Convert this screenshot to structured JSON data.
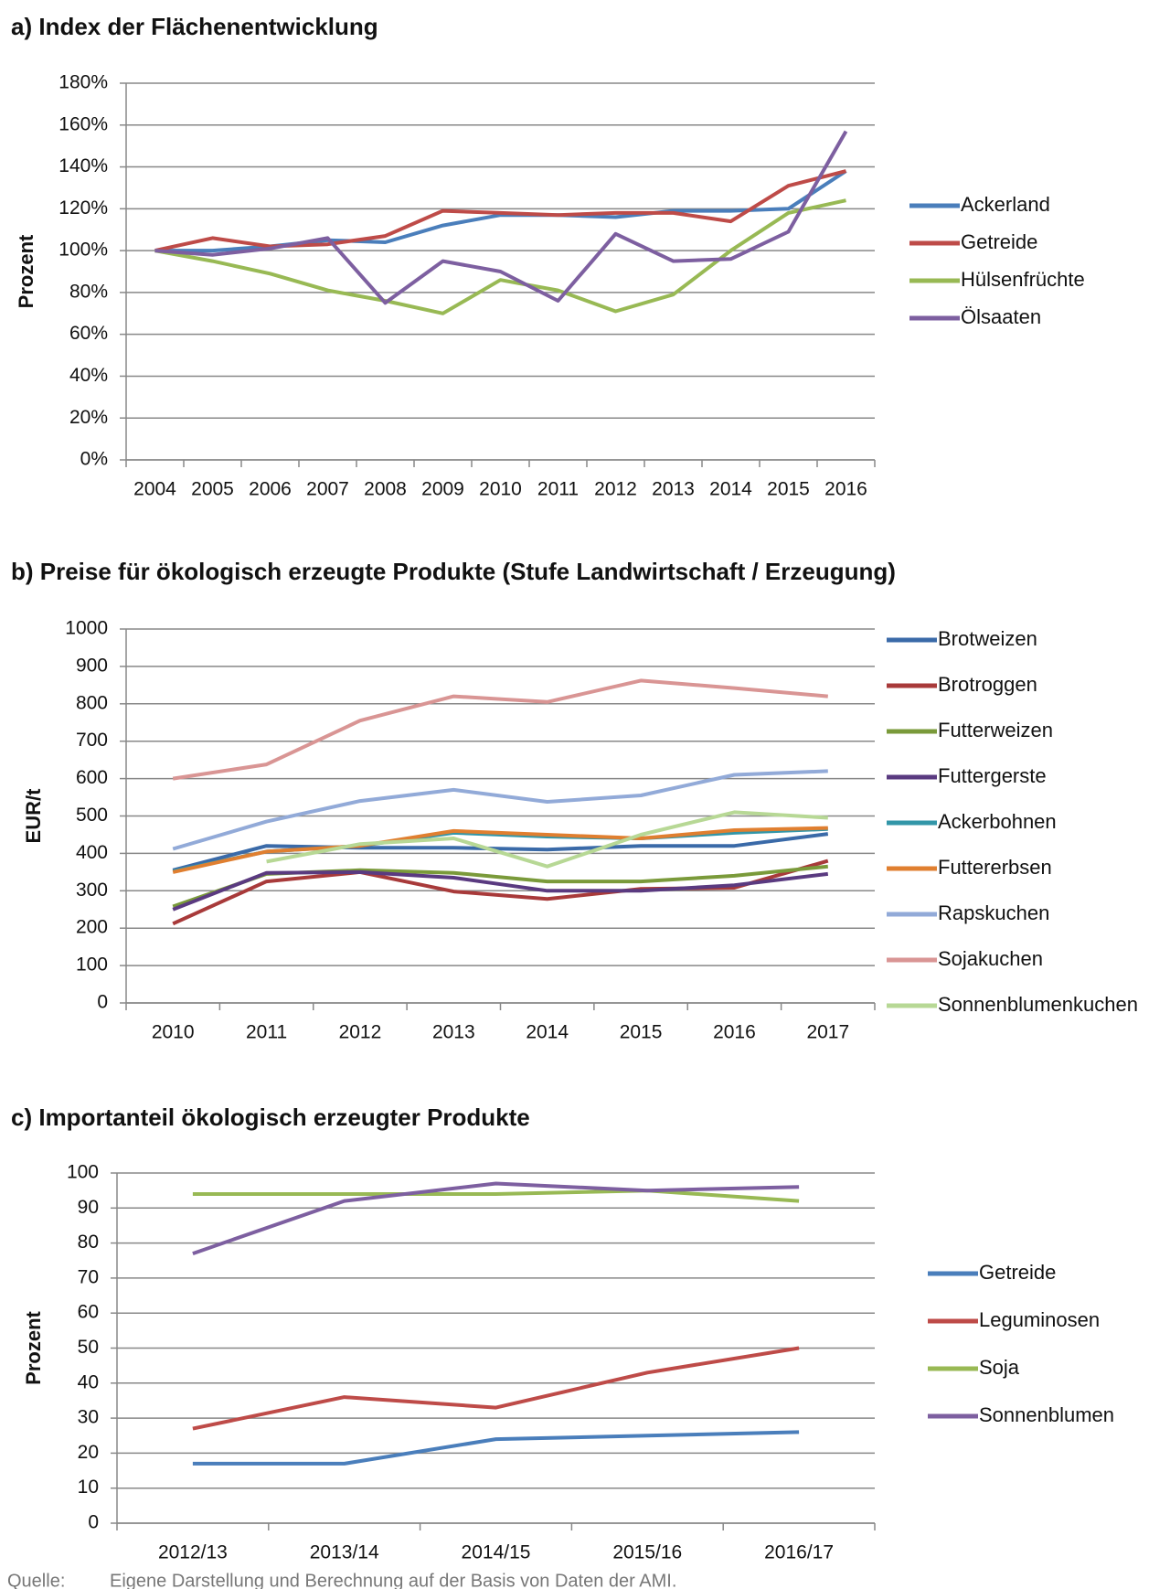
{
  "chart_data": [
    {
      "type": "line",
      "title": "a) Index der Flächenentwicklung",
      "y_label": "Prozent",
      "categories": [
        "2004",
        "2005",
        "2006",
        "2007",
        "2008",
        "2009",
        "2010",
        "2011",
        "2012",
        "2013",
        "2014",
        "2015",
        "2016"
      ],
      "ylim": [
        0,
        180
      ],
      "yticks": [
        {
          "value": 0,
          "label": "0%"
        },
        {
          "value": 20,
          "label": "20%"
        },
        {
          "value": 40,
          "label": "40%"
        },
        {
          "value": 60,
          "label": "60%"
        },
        {
          "value": 80,
          "label": "80%"
        },
        {
          "value": 100,
          "label": "100%"
        },
        {
          "value": 120,
          "label": "120%"
        },
        {
          "value": 140,
          "label": "140%"
        },
        {
          "value": 160,
          "label": "160%"
        },
        {
          "value": 180,
          "label": "180%"
        }
      ],
      "grid": true,
      "series": [
        {
          "name": "Ackerland",
          "color": "#4a7ebb",
          "values": [
            100,
            100,
            102,
            105,
            104,
            112,
            117,
            117,
            116,
            119,
            119,
            120,
            138
          ]
        },
        {
          "name": "Getreide",
          "color": "#be4b48",
          "values": [
            100,
            106,
            102,
            103,
            107,
            119,
            118,
            117,
            118,
            118,
            114,
            131,
            138
          ]
        },
        {
          "name": "Hülsenfrüchte",
          "color": "#98b954",
          "values": [
            100,
            95,
            89,
            81,
            76,
            70,
            86,
            81,
            71,
            79,
            100,
            118,
            124
          ]
        },
        {
          "name": "Ölsaaten",
          "color": "#7d5fa0",
          "values": [
            100,
            98,
            101,
            106,
            75,
            95,
            90,
            76,
            108,
            95,
            96,
            109,
            157
          ]
        }
      ]
    },
    {
      "type": "line",
      "title": "b) Preise für ökologisch erzeugte Produkte (Stufe Landwirtschaft / Erzeugung)",
      "y_label": "EUR/t",
      "categories": [
        "2010",
        "2011",
        "2012",
        "2013",
        "2014",
        "2015",
        "2016",
        "2017"
      ],
      "ylim": [
        0,
        1000
      ],
      "yticks": [
        0,
        100,
        200,
        300,
        400,
        500,
        600,
        700,
        800,
        900,
        1000
      ],
      "grid": true,
      "series": [
        {
          "name": "Brotweizen",
          "color": "#3a6aa8",
          "values": [
            355,
            420,
            415,
            415,
            410,
            420,
            420,
            452
          ]
        },
        {
          "name": "Brotroggen",
          "color": "#a83a3a",
          "values": [
            212,
            325,
            350,
            298,
            278,
            305,
            308,
            380
          ]
        },
        {
          "name": "Futterweizen",
          "color": "#7a9a3a",
          "values": [
            258,
            345,
            355,
            348,
            325,
            325,
            340,
            365
          ]
        },
        {
          "name": "Futtergerste",
          "color": "#5a3a80",
          "values": [
            250,
            348,
            350,
            335,
            300,
            300,
            315,
            345
          ]
        },
        {
          "name": "Ackerbohnen",
          "color": "#3296a8",
          "values": [
            352,
            405,
            420,
            455,
            445,
            440,
            455,
            465
          ]
        },
        {
          "name": "Futtererbsen",
          "color": "#e07f30",
          "values": [
            350,
            405,
            420,
            460,
            450,
            440,
            462,
            468
          ]
        },
        {
          "name": "Rapskuchen",
          "color": "#92aad8",
          "values": [
            412,
            485,
            540,
            570,
            538,
            555,
            610,
            620
          ]
        },
        {
          "name": "Sojakuchen",
          "color": "#d99594",
          "values": [
            600,
            638,
            755,
            820,
            805,
            862,
            842,
            820
          ]
        },
        {
          "name": "Sonnenblumenkuchen",
          "color": "#b7d895",
          "values": [
            null,
            378,
            425,
            440,
            365,
            450,
            510,
            495
          ]
        }
      ]
    },
    {
      "type": "line",
      "title": "c) Importanteil ökologisch erzeugter Produkte",
      "y_label": "Prozent",
      "categories": [
        "2012/13",
        "2013/14",
        "2014/15",
        "2015/16",
        "2016/17"
      ],
      "ylim": [
        0,
        100
      ],
      "yticks": [
        0,
        10,
        20,
        30,
        40,
        50,
        60,
        70,
        80,
        90,
        100
      ],
      "grid": true,
      "series": [
        {
          "name": "Getreide",
          "color": "#4a7ebb",
          "values": [
            17,
            17,
            24,
            25,
            26
          ]
        },
        {
          "name": "Leguminosen",
          "color": "#be4b48",
          "values": [
            27,
            36,
            33,
            43,
            50
          ]
        },
        {
          "name": "Soja",
          "color": "#98b954",
          "values": [
            94,
            94,
            94,
            95,
            92
          ]
        },
        {
          "name": "Sonnenblumen",
          "color": "#7d5fa0",
          "values": [
            77,
            92,
            97,
            95,
            96
          ]
        }
      ]
    }
  ],
  "footer": {
    "label": "Quelle:",
    "text": "Eigene Darstellung und Berechnung auf der Basis von Daten der AMI."
  }
}
